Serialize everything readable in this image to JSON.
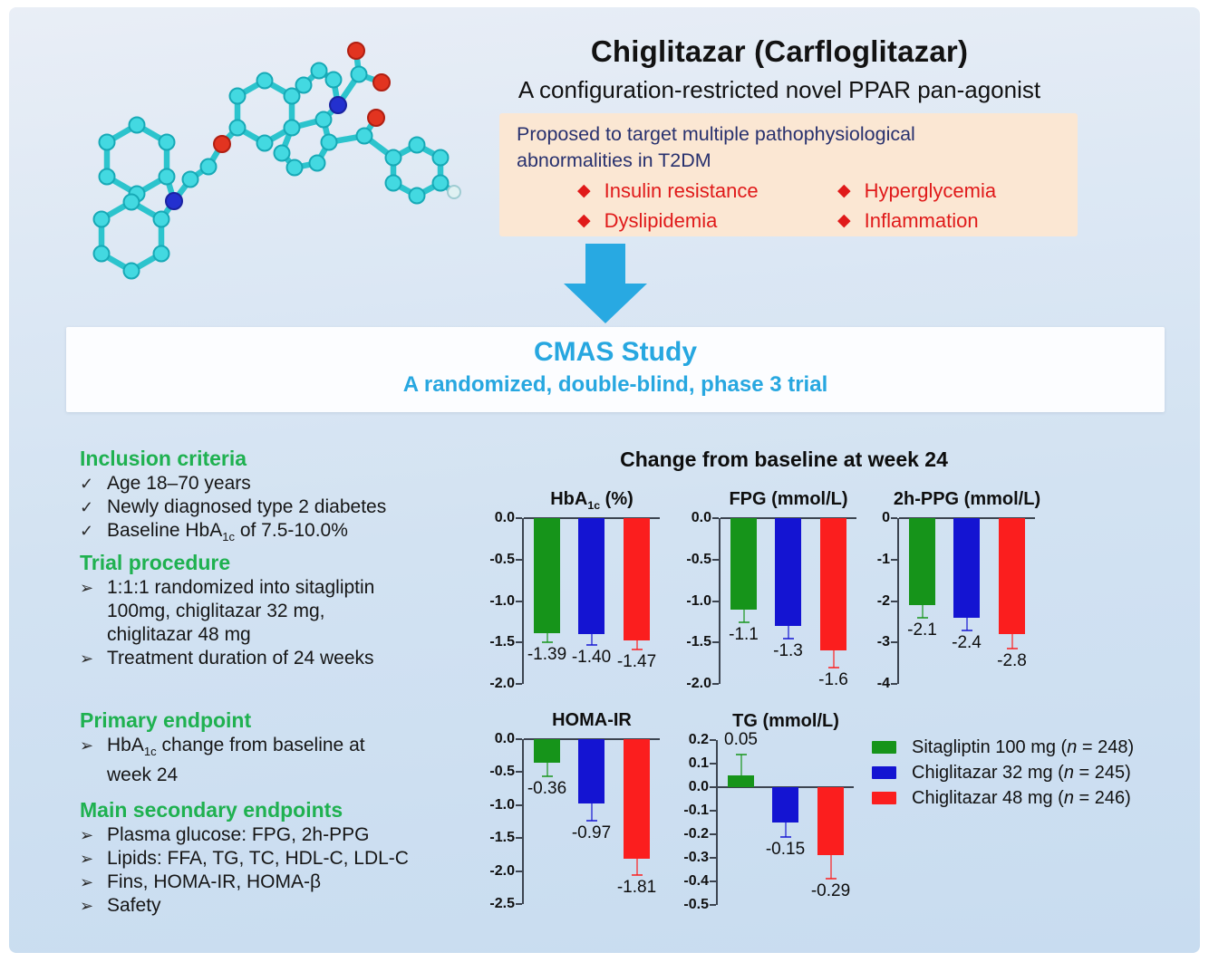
{
  "colors": {
    "accent_cyan": "#27a7e0",
    "heading_green": "#1fb150",
    "bullet_red": "#e01a1a",
    "navy_text": "#28316e",
    "peach_bg": "#fbe7d3"
  },
  "header": {
    "title": "Chiglitazar (Carfloglitazar)",
    "subtitle": "A configuration-restricted novel PPAR pan-agonist"
  },
  "target_box": {
    "line1": "Proposed to target multiple pathophysiological",
    "line2": "abnormalities in T2DM",
    "bullet_icon": "diamond",
    "bullets": [
      "Insulin resistance",
      "Hyperglycemia",
      "Dyslipidemia",
      "Inflammation"
    ]
  },
  "banner": {
    "title": "CMAS Study",
    "subtitle": "A randomized, double-blind, phase 3 trial"
  },
  "left_panel": {
    "sections": [
      {
        "heading": "Inclusion criteria",
        "marker": "✓",
        "items": [
          [
            {
              "t": "Age 18–70 years"
            }
          ],
          [
            {
              "t": "Newly diagnosed type 2 diabetes"
            }
          ],
          [
            {
              "t": "Baseline HbA"
            },
            {
              "t": "1c",
              "sub": true
            },
            {
              "t": " of 7.5-10.0%"
            }
          ]
        ]
      },
      {
        "heading": "Trial procedure",
        "marker": "➢",
        "items": [
          [
            {
              "t": "1:1:1 randomized into sitagliptin"
            },
            {
              "br": true
            },
            {
              "t": "100mg, chiglitazar 32 mg,"
            },
            {
              "br": true
            },
            {
              "t": "chiglitazar 48 mg"
            }
          ],
          [
            {
              "t": "Treatment duration of 24 weeks"
            }
          ]
        ]
      },
      {
        "heading": "Primary endpoint",
        "marker": "➢",
        "items": [
          [
            {
              "t": "HbA"
            },
            {
              "t": "1c",
              "sub": true
            },
            {
              "t": " change from baseline at"
            },
            {
              "br": true
            },
            {
              "t": "week 24"
            }
          ]
        ]
      },
      {
        "heading": "Main secondary endpoints",
        "marker": "➢",
        "items": [
          [
            {
              "t": "Plasma glucose: FPG, 2h-PPG"
            }
          ],
          [
            {
              "t": "Lipids: FFA, TG, TC, HDL-C, LDL-C"
            }
          ],
          [
            {
              "t": "Fins, HOMA-IR, HOMA-β"
            }
          ],
          [
            {
              "t": "Safety"
            }
          ]
        ]
      }
    ]
  },
  "charts_heading": "Change from baseline at week 24",
  "series": [
    {
      "key": "sitagliptin-100mg",
      "label_pre": "Sitagliptin 100 mg (",
      "n": "n",
      "label_post": " = 248)",
      "color": "#16941a"
    },
    {
      "key": "chiglitazar-32mg",
      "label_pre": "Chiglitazar 32 mg (",
      "n": "n",
      "label_post": " = 245)",
      "color": "#1414d2"
    },
    {
      "key": "chiglitazar-48mg",
      "label_pre": "Chiglitazar 48 mg (",
      "n": "n",
      "label_post": " = 246)",
      "color": "#fb1e1e"
    }
  ],
  "chart_data": [
    {
      "type": "bar",
      "title_parts": [
        {
          "t": "HbA"
        },
        {
          "t": "1c",
          "sub": true
        },
        {
          "t": " (%)"
        }
      ],
      "categories": [
        "Sitagliptin 100 mg",
        "Chiglitazar 32 mg",
        "Chiglitazar 48 mg"
      ],
      "values": [
        -1.39,
        -1.4,
        -1.47
      ],
      "errors": [
        0.11,
        0.13,
        0.11
      ],
      "value_labels": [
        "-1.39",
        "-1.40",
        "-1.47"
      ],
      "ylim": [
        -2.0,
        0.0
      ],
      "ticks": [
        {
          "v": 0.0,
          "label": "0.0"
        },
        {
          "v": -0.5,
          "label": "-0.5"
        },
        {
          "v": -1.0,
          "label": "-1.0"
        },
        {
          "v": -1.5,
          "label": "-1.5"
        },
        {
          "v": -2.0,
          "label": "-2.0"
        }
      ]
    },
    {
      "type": "bar",
      "title_parts": [
        {
          "t": "FPG (mmol/L)"
        }
      ],
      "categories": [
        "Sitagliptin 100 mg",
        "Chiglitazar 32 mg",
        "Chiglitazar 48 mg"
      ],
      "values": [
        -1.1,
        -1.3,
        -1.6
      ],
      "errors": [
        0.16,
        0.15,
        0.2
      ],
      "value_labels": [
        "-1.1",
        "-1.3",
        "-1.6"
      ],
      "ylim": [
        -2.0,
        0.0
      ],
      "ticks": [
        {
          "v": 0.0,
          "label": "0.0"
        },
        {
          "v": -0.5,
          "label": "-0.5"
        },
        {
          "v": -1.0,
          "label": "-1.0"
        },
        {
          "v": -1.5,
          "label": "-1.5"
        },
        {
          "v": -2.0,
          "label": "-2.0"
        }
      ]
    },
    {
      "type": "bar",
      "title_parts": [
        {
          "t": "2h-PPG (mmol/L)"
        }
      ],
      "categories": [
        "Sitagliptin 100 mg",
        "Chiglitazar 32 mg",
        "Chiglitazar 48 mg"
      ],
      "values": [
        -2.1,
        -2.4,
        -2.8
      ],
      "errors": [
        0.3,
        0.3,
        0.35
      ],
      "value_labels": [
        "-2.1",
        "-2.4",
        "-2.8"
      ],
      "ylim": [
        -4,
        0
      ],
      "ticks": [
        {
          "v": 0,
          "label": "0"
        },
        {
          "v": -1,
          "label": "-1"
        },
        {
          "v": -2,
          "label": "-2"
        },
        {
          "v": -3,
          "label": "-3"
        },
        {
          "v": -4,
          "label": "-4"
        }
      ]
    },
    {
      "type": "bar",
      "title_parts": [
        {
          "t": "HOMA-IR"
        }
      ],
      "categories": [
        "Sitagliptin 100 mg",
        "Chiglitazar 32 mg",
        "Chiglitazar 48 mg"
      ],
      "values": [
        -0.36,
        -0.97,
        -1.81
      ],
      "errors": [
        0.21,
        0.27,
        0.25
      ],
      "value_labels": [
        "-0.36",
        "-0.97",
        "-1.81"
      ],
      "ylim": [
        -2.5,
        0.0
      ],
      "ticks": [
        {
          "v": 0.0,
          "label": "0.0"
        },
        {
          "v": -0.5,
          "label": "-0.5"
        },
        {
          "v": -1.0,
          "label": "-1.0"
        },
        {
          "v": -1.5,
          "label": "-1.5"
        },
        {
          "v": -2.0,
          "label": "-2.0"
        },
        {
          "v": -2.5,
          "label": "-2.5"
        }
      ]
    },
    {
      "type": "bar",
      "title_parts": [
        {
          "t": "TG (mmol/L)"
        }
      ],
      "categories": [
        "Sitagliptin 100 mg",
        "Chiglitazar 32 mg",
        "Chiglitazar 48 mg"
      ],
      "values": [
        0.05,
        -0.15,
        -0.29
      ],
      "errors": [
        0.09,
        0.06,
        0.1
      ],
      "value_labels": [
        "0.05",
        "-0.15",
        "-0.29"
      ],
      "ylim": [
        -0.5,
        0.2
      ],
      "ticks": [
        {
          "v": 0.2,
          "label": "0.2"
        },
        {
          "v": 0.1,
          "label": "0.1"
        },
        {
          "v": 0.0,
          "label": "0.0"
        },
        {
          "v": -0.1,
          "label": "-0.1"
        },
        {
          "v": -0.2,
          "label": "-0.2"
        },
        {
          "v": -0.3,
          "label": "-0.3"
        },
        {
          "v": -0.4,
          "label": "-0.4"
        },
        {
          "v": -0.5,
          "label": "-0.5"
        }
      ]
    }
  ]
}
